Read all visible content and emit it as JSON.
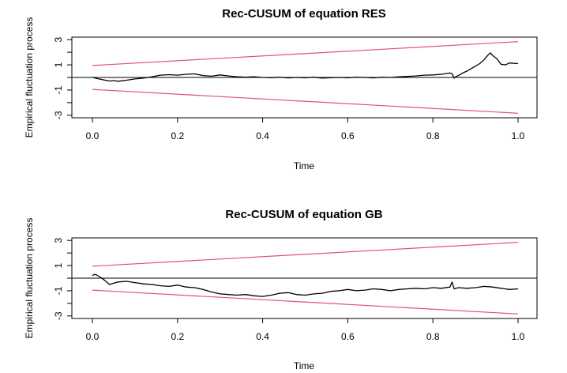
{
  "chart_data": [
    {
      "type": "line",
      "title": "Rec-CUSUM of equation RES",
      "xlabel": "Time",
      "ylabel": "Empirical fluctuation process",
      "xlim": [
        0,
        1
      ],
      "ylim": [
        -3.2,
        3.2
      ],
      "x_ticks": [
        "0.0",
        "0.2",
        "0.4",
        "0.6",
        "0.8",
        "1.0"
      ],
      "y_ticks": [
        "3",
        "1",
        "-1",
        "-3"
      ],
      "grid": false,
      "colors": {
        "process": "#000000",
        "boundary": "#df536b",
        "zero": "#000000"
      },
      "boundary": {
        "start": 0.948,
        "end": 2.844
      },
      "process": {
        "x": [
          0,
          0.01,
          0.02,
          0.03,
          0.04,
          0.05,
          0.06,
          0.08,
          0.1,
          0.12,
          0.14,
          0.16,
          0.18,
          0.2,
          0.22,
          0.24,
          0.26,
          0.28,
          0.3,
          0.32,
          0.34,
          0.36,
          0.38,
          0.4,
          0.42,
          0.44,
          0.46,
          0.48,
          0.5,
          0.52,
          0.54,
          0.56,
          0.58,
          0.6,
          0.62,
          0.64,
          0.66,
          0.68,
          0.7,
          0.72,
          0.74,
          0.76,
          0.78,
          0.8,
          0.82,
          0.84,
          0.845,
          0.85,
          0.855,
          0.86,
          0.87,
          0.88,
          0.89,
          0.9,
          0.91,
          0.92,
          0.93,
          0.935,
          0.94,
          0.95,
          0.96,
          0.97,
          0.98,
          1.0
        ],
        "y": [
          0.02,
          -0.08,
          -0.15,
          -0.22,
          -0.28,
          -0.25,
          -0.3,
          -0.22,
          -0.12,
          -0.05,
          0.05,
          0.18,
          0.22,
          0.18,
          0.25,
          0.28,
          0.15,
          0.1,
          0.2,
          0.12,
          0.05,
          0.02,
          0.05,
          0.0,
          -0.02,
          0.02,
          -0.04,
          0.0,
          -0.03,
          0.02,
          -0.05,
          -0.02,
          0.0,
          -0.03,
          0.02,
          0.0,
          -0.04,
          0.02,
          0.0,
          0.05,
          0.08,
          0.12,
          0.18,
          0.2,
          0.25,
          0.35,
          0.3,
          -0.05,
          0.08,
          0.15,
          0.35,
          0.5,
          0.7,
          0.9,
          1.1,
          1.4,
          1.8,
          1.95,
          1.75,
          1.5,
          1.05,
          1.0,
          1.15,
          1.1
        ]
      }
    },
    {
      "type": "line",
      "title": "Rec-CUSUM of equation GB",
      "xlabel": "Time",
      "ylabel": "Empirical fluctuation process",
      "xlim": [
        0,
        1
      ],
      "ylim": [
        -3.2,
        3.2
      ],
      "x_ticks": [
        "0.0",
        "0.2",
        "0.4",
        "0.6",
        "0.8",
        "1.0"
      ],
      "y_ticks": [
        "3",
        "1",
        "-1",
        "-3"
      ],
      "grid": false,
      "colors": {
        "process": "#000000",
        "boundary": "#df536b",
        "zero": "#000000"
      },
      "boundary": {
        "start": 0.948,
        "end": 2.844
      },
      "process": {
        "x": [
          0,
          0.005,
          0.01,
          0.02,
          0.03,
          0.04,
          0.05,
          0.06,
          0.08,
          0.1,
          0.12,
          0.14,
          0.16,
          0.18,
          0.2,
          0.22,
          0.24,
          0.26,
          0.28,
          0.3,
          0.32,
          0.34,
          0.36,
          0.38,
          0.4,
          0.42,
          0.44,
          0.46,
          0.48,
          0.5,
          0.52,
          0.54,
          0.56,
          0.58,
          0.6,
          0.62,
          0.64,
          0.66,
          0.68,
          0.7,
          0.72,
          0.74,
          0.76,
          0.78,
          0.8,
          0.82,
          0.84,
          0.845,
          0.85,
          0.86,
          0.88,
          0.9,
          0.92,
          0.94,
          0.96,
          0.98,
          1.0
        ],
        "y": [
          0.2,
          0.3,
          0.25,
          0.05,
          -0.2,
          -0.5,
          -0.4,
          -0.3,
          -0.25,
          -0.35,
          -0.45,
          -0.5,
          -0.6,
          -0.65,
          -0.55,
          -0.7,
          -0.75,
          -0.9,
          -1.1,
          -1.25,
          -1.3,
          -1.35,
          -1.3,
          -1.4,
          -1.45,
          -1.35,
          -1.2,
          -1.15,
          -1.3,
          -1.35,
          -1.25,
          -1.2,
          -1.05,
          -1.0,
          -0.9,
          -1.0,
          -0.95,
          -0.85,
          -0.9,
          -1.0,
          -0.9,
          -0.85,
          -0.8,
          -0.85,
          -0.75,
          -0.8,
          -0.7,
          -0.3,
          -0.85,
          -0.75,
          -0.8,
          -0.75,
          -0.65,
          -0.7,
          -0.8,
          -0.9,
          -0.85
        ]
      }
    }
  ]
}
